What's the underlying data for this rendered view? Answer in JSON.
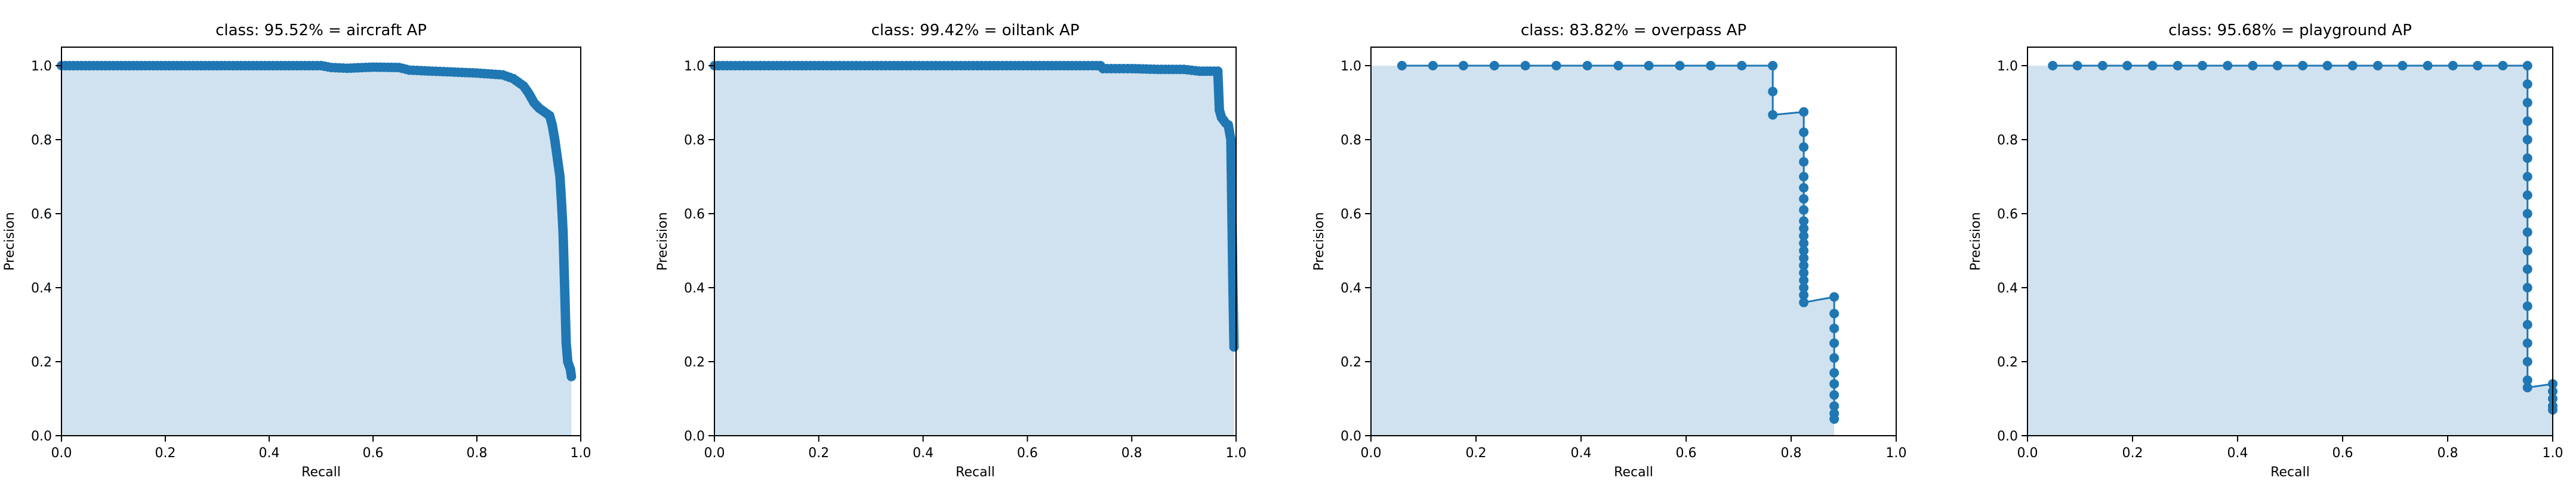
{
  "colors": {
    "line": "#1f77b4",
    "fill": "#d0e2ef",
    "axis": "#000000"
  },
  "chart_data": [
    {
      "type": "area",
      "title": "class: 95.52% = aircraft AP",
      "xlabel": "Recall",
      "ylabel": "Precision",
      "xlim": [
        0,
        1
      ],
      "ylim": [
        0,
        1.05
      ],
      "xticks": [
        "0.0",
        "0.2",
        "0.4",
        "0.6",
        "0.8",
        "1.0"
      ],
      "yticks": [
        "0.0",
        "0.2",
        "0.4",
        "0.6",
        "0.8",
        "1.0"
      ],
      "grid": false,
      "marker": "dense",
      "points": [
        [
          0.0,
          1.0
        ],
        [
          0.1,
          1.0
        ],
        [
          0.2,
          1.0
        ],
        [
          0.3,
          1.0
        ],
        [
          0.4,
          1.0
        ],
        [
          0.5,
          1.0
        ],
        [
          0.52,
          0.995
        ],
        [
          0.55,
          0.993
        ],
        [
          0.6,
          0.996
        ],
        [
          0.65,
          0.995
        ],
        [
          0.67,
          0.988
        ],
        [
          0.7,
          0.986
        ],
        [
          0.75,
          0.983
        ],
        [
          0.8,
          0.98
        ],
        [
          0.85,
          0.975
        ],
        [
          0.87,
          0.965
        ],
        [
          0.89,
          0.945
        ],
        [
          0.9,
          0.925
        ],
        [
          0.91,
          0.9
        ],
        [
          0.92,
          0.885
        ],
        [
          0.93,
          0.875
        ],
        [
          0.94,
          0.865
        ],
        [
          0.945,
          0.84
        ],
        [
          0.95,
          0.8
        ],
        [
          0.955,
          0.75
        ],
        [
          0.96,
          0.7
        ],
        [
          0.963,
          0.63
        ],
        [
          0.966,
          0.55
        ],
        [
          0.968,
          0.45
        ],
        [
          0.97,
          0.35
        ],
        [
          0.972,
          0.25
        ],
        [
          0.975,
          0.2
        ],
        [
          0.98,
          0.18
        ],
        [
          0.982,
          0.16
        ]
      ]
    },
    {
      "type": "area",
      "title": "class: 99.42% = oiltank AP",
      "xlabel": "Recall",
      "ylabel": "Precision",
      "xlim": [
        0,
        1
      ],
      "ylim": [
        0,
        1.05
      ],
      "xticks": [
        "0.0",
        "0.2",
        "0.4",
        "0.6",
        "0.8",
        "1.0"
      ],
      "yticks": [
        "0.0",
        "0.2",
        "0.4",
        "0.6",
        "0.8",
        "1.0"
      ],
      "grid": false,
      "marker": "dense",
      "points": [
        [
          0.0,
          1.0
        ],
        [
          0.2,
          1.0
        ],
        [
          0.4,
          1.0
        ],
        [
          0.6,
          1.0
        ],
        [
          0.74,
          1.0
        ],
        [
          0.745,
          0.992
        ],
        [
          0.8,
          0.992
        ],
        [
          0.85,
          0.99
        ],
        [
          0.9,
          0.99
        ],
        [
          0.93,
          0.985
        ],
        [
          0.965,
          0.985
        ],
        [
          0.968,
          0.88
        ],
        [
          0.972,
          0.86
        ],
        [
          0.98,
          0.845
        ],
        [
          0.985,
          0.84
        ],
        [
          0.99,
          0.8
        ],
        [
          0.992,
          0.6
        ],
        [
          0.994,
          0.4
        ],
        [
          0.996,
          0.24
        ]
      ]
    },
    {
      "type": "area",
      "title": "class: 83.82% = overpass AP",
      "xlabel": "Recall",
      "ylabel": "Precision",
      "xlim": [
        0,
        1
      ],
      "ylim": [
        0,
        1.05
      ],
      "xticks": [
        "0.0",
        "0.2",
        "0.4",
        "0.6",
        "0.8",
        "1.0"
      ],
      "yticks": [
        "0.0",
        "0.2",
        "0.4",
        "0.6",
        "0.8",
        "1.0"
      ],
      "grid": false,
      "marker": "dot",
      "points": [
        [
          0.059,
          1.0
        ],
        [
          0.118,
          1.0
        ],
        [
          0.176,
          1.0
        ],
        [
          0.235,
          1.0
        ],
        [
          0.294,
          1.0
        ],
        [
          0.353,
          1.0
        ],
        [
          0.412,
          1.0
        ],
        [
          0.471,
          1.0
        ],
        [
          0.529,
          1.0
        ],
        [
          0.588,
          1.0
        ],
        [
          0.647,
          1.0
        ],
        [
          0.706,
          1.0
        ],
        [
          0.765,
          1.0
        ],
        [
          0.765,
          0.93
        ],
        [
          0.765,
          0.867
        ],
        [
          0.824,
          0.875
        ],
        [
          0.824,
          0.82
        ],
        [
          0.824,
          0.78
        ],
        [
          0.824,
          0.74
        ],
        [
          0.824,
          0.7
        ],
        [
          0.824,
          0.67
        ],
        [
          0.824,
          0.64
        ],
        [
          0.824,
          0.61
        ],
        [
          0.824,
          0.58
        ],
        [
          0.824,
          0.56
        ],
        [
          0.824,
          0.54
        ],
        [
          0.824,
          0.52
        ],
        [
          0.824,
          0.5
        ],
        [
          0.824,
          0.48
        ],
        [
          0.824,
          0.46
        ],
        [
          0.824,
          0.44
        ],
        [
          0.824,
          0.42
        ],
        [
          0.824,
          0.4
        ],
        [
          0.824,
          0.38
        ],
        [
          0.824,
          0.36
        ],
        [
          0.882,
          0.375
        ],
        [
          0.882,
          0.33
        ],
        [
          0.882,
          0.29
        ],
        [
          0.882,
          0.25
        ],
        [
          0.882,
          0.21
        ],
        [
          0.882,
          0.17
        ],
        [
          0.882,
          0.14
        ],
        [
          0.882,
          0.11
        ],
        [
          0.882,
          0.08
        ],
        [
          0.882,
          0.06
        ],
        [
          0.882,
          0.045
        ]
      ]
    },
    {
      "type": "area",
      "title": "class: 95.68% = playground AP",
      "xlabel": "Recall",
      "ylabel": "Precision",
      "xlim": [
        0,
        1
      ],
      "ylim": [
        0,
        1.05
      ],
      "xticks": [
        "0.0",
        "0.2",
        "0.4",
        "0.6",
        "0.8",
        "1.0"
      ],
      "yticks": [
        "0.0",
        "0.2",
        "0.4",
        "0.6",
        "0.8",
        "1.0"
      ],
      "grid": false,
      "marker": "dot",
      "points": [
        [
          0.048,
          1.0
        ],
        [
          0.095,
          1.0
        ],
        [
          0.143,
          1.0
        ],
        [
          0.19,
          1.0
        ],
        [
          0.238,
          1.0
        ],
        [
          0.286,
          1.0
        ],
        [
          0.333,
          1.0
        ],
        [
          0.381,
          1.0
        ],
        [
          0.429,
          1.0
        ],
        [
          0.476,
          1.0
        ],
        [
          0.524,
          1.0
        ],
        [
          0.571,
          1.0
        ],
        [
          0.619,
          1.0
        ],
        [
          0.667,
          1.0
        ],
        [
          0.714,
          1.0
        ],
        [
          0.762,
          1.0
        ],
        [
          0.81,
          1.0
        ],
        [
          0.857,
          1.0
        ],
        [
          0.905,
          1.0
        ],
        [
          0.952,
          1.0
        ],
        [
          0.952,
          0.95
        ],
        [
          0.952,
          0.9
        ],
        [
          0.952,
          0.85
        ],
        [
          0.952,
          0.8
        ],
        [
          0.952,
          0.75
        ],
        [
          0.952,
          0.7
        ],
        [
          0.952,
          0.65
        ],
        [
          0.952,
          0.6
        ],
        [
          0.952,
          0.55
        ],
        [
          0.952,
          0.5
        ],
        [
          0.952,
          0.45
        ],
        [
          0.952,
          0.4
        ],
        [
          0.952,
          0.35
        ],
        [
          0.952,
          0.3
        ],
        [
          0.952,
          0.25
        ],
        [
          0.952,
          0.2
        ],
        [
          0.952,
          0.15
        ],
        [
          0.952,
          0.13
        ],
        [
          1.0,
          0.14
        ],
        [
          1.0,
          0.12
        ],
        [
          1.0,
          0.1
        ],
        [
          1.0,
          0.08
        ],
        [
          1.0,
          0.07
        ]
      ]
    }
  ]
}
